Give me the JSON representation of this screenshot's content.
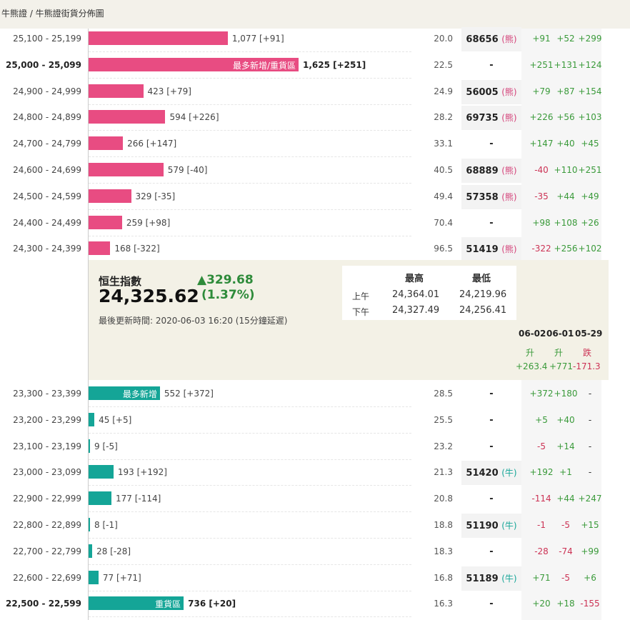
{
  "breadcrumb": "牛熊證 / 牛熊證街貨分佈圖",
  "bear_rows": [
    {
      "range": "25,100 - 25,199",
      "qty": "1,077 [+91]",
      "bar_value": 1077,
      "pct": "20.0",
      "code": "68656",
      "type": "(熊)",
      "d1": "+91",
      "d2": "+52",
      "d3": "+299",
      "d1c": "up",
      "d2c": "up",
      "d3c": "up",
      "bold": false,
      "label": ""
    },
    {
      "range": "25,000 - 25,099",
      "qty": "1,625 [+251]",
      "bar_value": 1625,
      "pct": "22.5",
      "code": "-",
      "type": "",
      "d1": "+251",
      "d2": "+131",
      "d3": "+124",
      "d1c": "up",
      "d2c": "up",
      "d3c": "up",
      "bold": true,
      "label": "最多新增/重貨區"
    },
    {
      "range": "24,900 - 24,999",
      "qty": "423 [+79]",
      "bar_value": 423,
      "pct": "24.9",
      "code": "56005",
      "type": "(熊)",
      "d1": "+79",
      "d2": "+87",
      "d3": "+154",
      "d1c": "up",
      "d2c": "up",
      "d3c": "up",
      "bold": false,
      "label": ""
    },
    {
      "range": "24,800 - 24,899",
      "qty": "594 [+226]",
      "bar_value": 594,
      "pct": "28.2",
      "code": "69735",
      "type": "(熊)",
      "d1": "+226",
      "d2": "+56",
      "d3": "+103",
      "d1c": "up",
      "d2c": "up",
      "d3c": "up",
      "bold": false,
      "label": ""
    },
    {
      "range": "24,700 - 24,799",
      "qty": "266 [+147]",
      "bar_value": 266,
      "pct": "33.1",
      "code": "-",
      "type": "",
      "d1": "+147",
      "d2": "+40",
      "d3": "+45",
      "d1c": "up",
      "d2c": "up",
      "d3c": "up",
      "bold": false,
      "label": ""
    },
    {
      "range": "24,600 - 24,699",
      "qty": "579 [-40]",
      "bar_value": 579,
      "pct": "40.5",
      "code": "68889",
      "type": "(熊)",
      "d1": "-40",
      "d2": "+110",
      "d3": "+251",
      "d1c": "dn",
      "d2c": "up",
      "d3c": "up",
      "bold": false,
      "label": ""
    },
    {
      "range": "24,500 - 24,599",
      "qty": "329 [-35]",
      "bar_value": 329,
      "pct": "49.4",
      "code": "57358",
      "type": "(熊)",
      "d1": "-35",
      "d2": "+44",
      "d3": "+49",
      "d1c": "dn",
      "d2c": "up",
      "d3c": "up",
      "bold": false,
      "label": ""
    },
    {
      "range": "24,400 - 24,499",
      "qty": "259 [+98]",
      "bar_value": 259,
      "pct": "70.4",
      "code": "-",
      "type": "",
      "d1": "+98",
      "d2": "+108",
      "d3": "+26",
      "d1c": "up",
      "d2c": "up",
      "d3c": "up",
      "bold": false,
      "label": ""
    },
    {
      "range": "24,300 - 24,399",
      "qty": "168 [-322]",
      "bar_value": 168,
      "pct": "96.5",
      "code": "51419",
      "type": "(熊)",
      "d1": "-322",
      "d2": "+256",
      "d3": "+102",
      "d1c": "dn",
      "d2c": "up",
      "d3c": "up",
      "bold": false,
      "label": ""
    }
  ],
  "bull_rows": [
    {
      "range": "23,300 - 23,399",
      "qty": "552 [+372]",
      "bar_value": 552,
      "pct": "28.5",
      "code": "-",
      "type": "",
      "d1": "+372",
      "d2": "+180",
      "d3": "-",
      "d1c": "up",
      "d2c": "up",
      "d3c": "nt",
      "bold": false,
      "label": "最多新增"
    },
    {
      "range": "23,200 - 23,299",
      "qty": "45 [+5]",
      "bar_value": 45,
      "pct": "25.5",
      "code": "-",
      "type": "",
      "d1": "+5",
      "d2": "+40",
      "d3": "-",
      "d1c": "up",
      "d2c": "up",
      "d3c": "nt",
      "bold": false,
      "label": ""
    },
    {
      "range": "23,100 - 23,199",
      "qty": "9 [-5]",
      "bar_value": 9,
      "pct": "23.2",
      "code": "-",
      "type": "",
      "d1": "-5",
      "d2": "+14",
      "d3": "-",
      "d1c": "dn",
      "d2c": "up",
      "d3c": "nt",
      "bold": false,
      "label": ""
    },
    {
      "range": "23,000 - 23,099",
      "qty": "193 [+192]",
      "bar_value": 193,
      "pct": "21.3",
      "code": "51420",
      "type": "(牛)",
      "d1": "+192",
      "d2": "+1",
      "d3": "-",
      "d1c": "up",
      "d2c": "up",
      "d3c": "nt",
      "bold": false,
      "label": ""
    },
    {
      "range": "22,900 - 22,999",
      "qty": "177 [-114]",
      "bar_value": 177,
      "pct": "20.8",
      "code": "-",
      "type": "",
      "d1": "-114",
      "d2": "+44",
      "d3": "+247",
      "d1c": "dn",
      "d2c": "up",
      "d3c": "up",
      "bold": false,
      "label": ""
    },
    {
      "range": "22,800 - 22,899",
      "qty": "8 [-1]",
      "bar_value": 8,
      "pct": "18.8",
      "code": "51190",
      "type": "(牛)",
      "d1": "-1",
      "d2": "-5",
      "d3": "+15",
      "d1c": "dn",
      "d2c": "dn",
      "d3c": "up",
      "bold": false,
      "label": ""
    },
    {
      "range": "22,700 - 22,799",
      "qty": "28 [-28]",
      "bar_value": 28,
      "pct": "18.3",
      "code": "-",
      "type": "",
      "d1": "-28",
      "d2": "-74",
      "d3": "+99",
      "d1c": "dn",
      "d2c": "dn",
      "d3c": "up",
      "bold": false,
      "label": ""
    },
    {
      "range": "22,600 - 22,699",
      "qty": "77 [+71]",
      "bar_value": 77,
      "pct": "16.8",
      "code": "51189",
      "type": "(牛)",
      "d1": "+71",
      "d2": "-5",
      "d3": "+6",
      "d1c": "up",
      "d2c": "dn",
      "d3c": "up",
      "bold": false,
      "label": ""
    },
    {
      "range": "22,500 - 22,599",
      "qty": "736 [+20]",
      "bar_value": 736,
      "pct": "16.3",
      "code": "-",
      "type": "",
      "d1": "+20",
      "d2": "+18",
      "d3": "-155",
      "d1c": "up",
      "d2c": "up",
      "d3c": "dn",
      "bold": true,
      "label": "重貨區"
    }
  ],
  "index_panel": {
    "name": "恒生指數",
    "value": "24,325.62",
    "change": "▲329.68",
    "change_pct": "(1.37%)",
    "updated": "最後更新時間: 2020-06-03 16:20 (15分鐘延遲)",
    "hl_headers": [
      "最高",
      "最低"
    ],
    "hl_rows": [
      {
        "label": "上午",
        "high": "24,364.01",
        "low": "24,219.96"
      },
      {
        "label": "下午",
        "high": "24,327.49",
        "low": "24,256.41"
      }
    ],
    "dates": [
      "06-02",
      "06-01",
      "05-29"
    ],
    "directions": [
      "升",
      "升",
      "跌"
    ],
    "changes": [
      "+263.4",
      "+771",
      "-171.3"
    ]
  },
  "colors": {
    "bear": "#e84c82",
    "bull": "#14a597",
    "up": "#3a9a3a",
    "down": "#cc3355",
    "panel_bg": "#f3f1e6"
  }
}
